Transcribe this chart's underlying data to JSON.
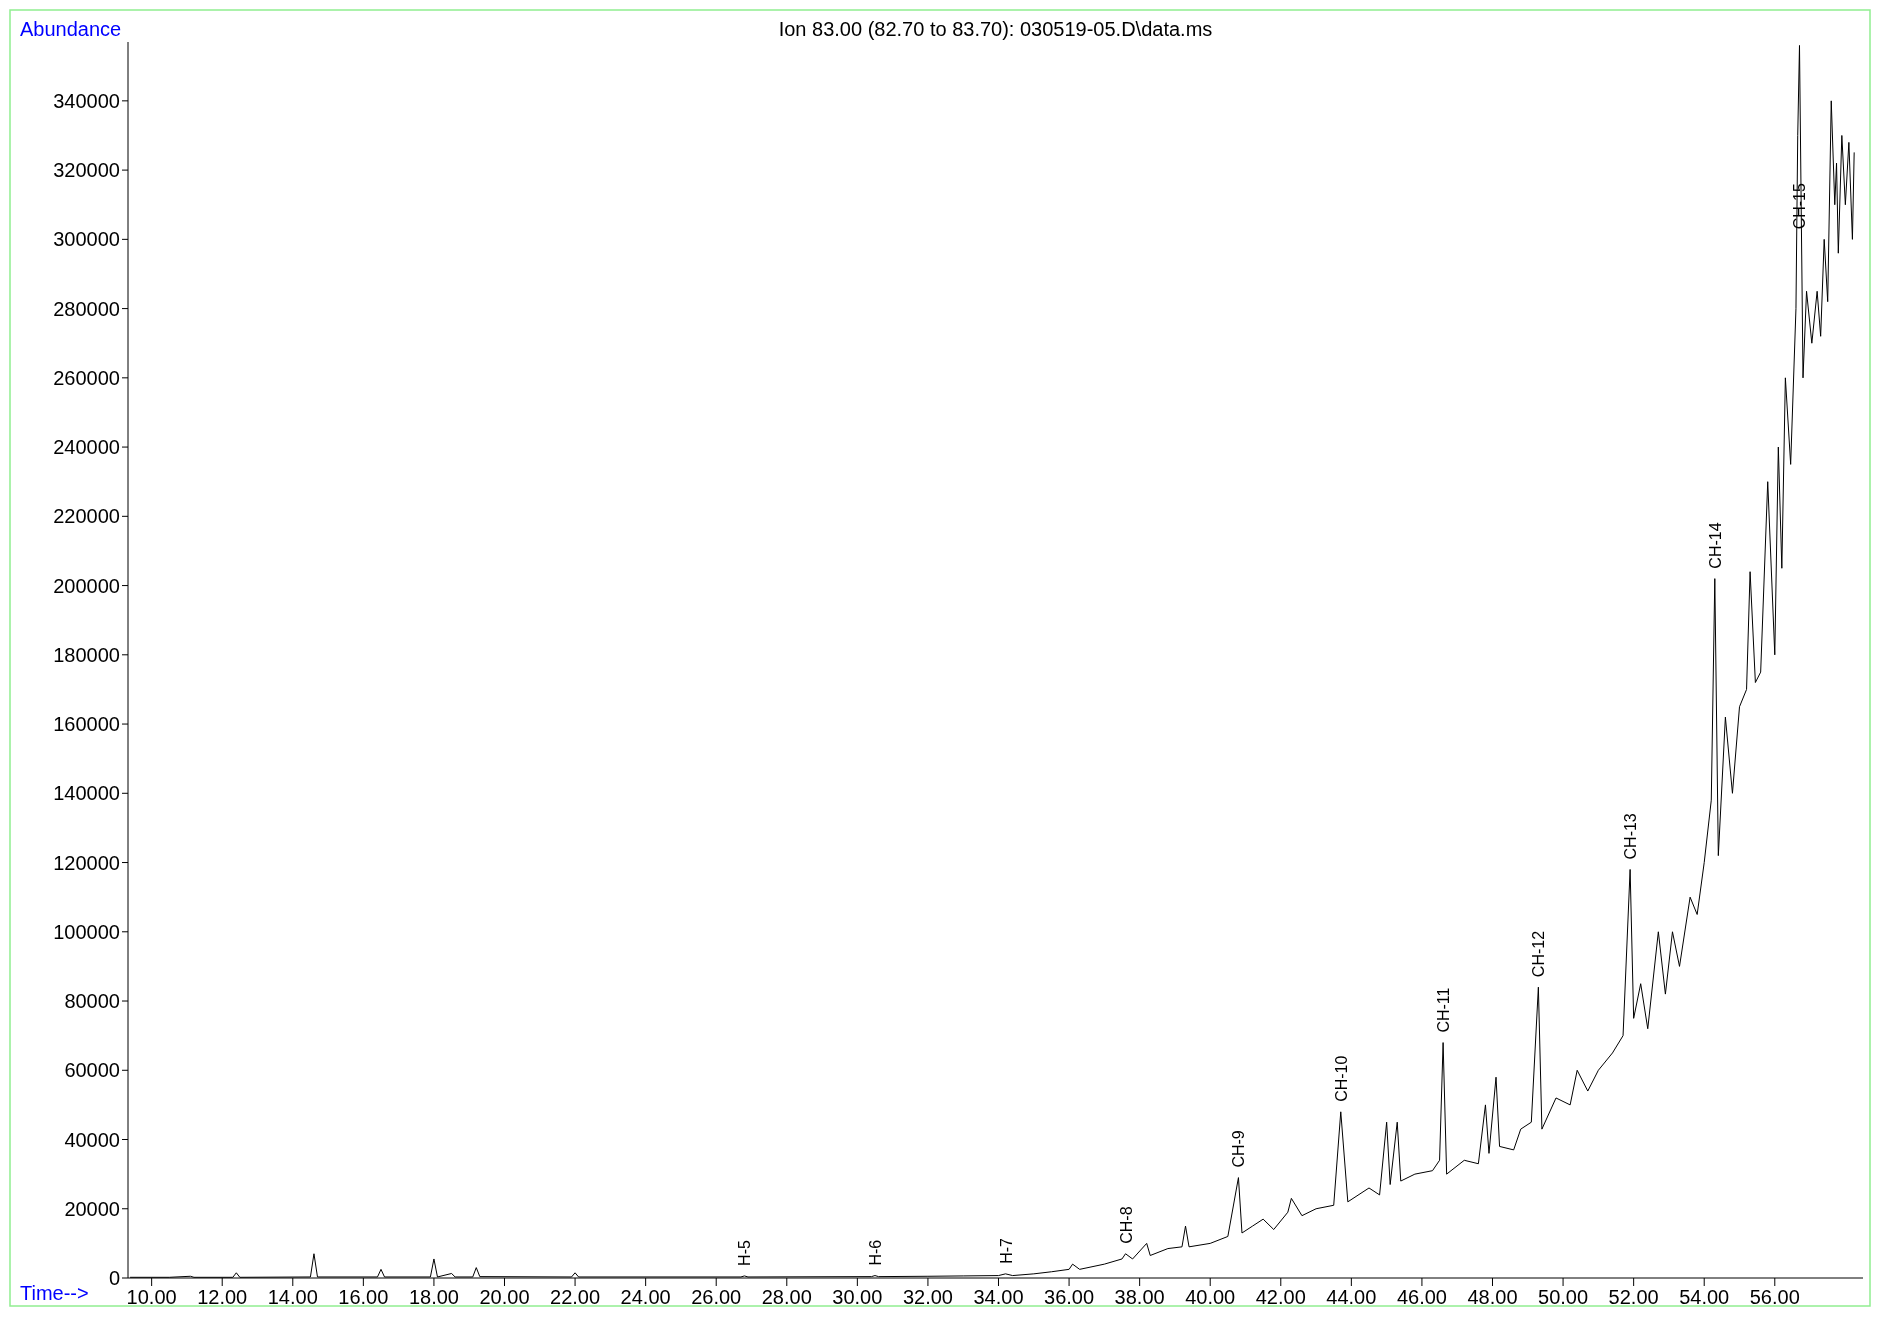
{
  "chart_data": {
    "type": "line",
    "title": "Ion  83.00 (82.70 to 83.70): 030519-05.D\\data.ms",
    "xlabel": "Time-->",
    "ylabel": "Abundance",
    "xlim": [
      9.33,
      58.5
    ],
    "ylim": [
      0,
      357000
    ],
    "xticks": [
      {
        "value": 10,
        "label": "10.00"
      },
      {
        "value": 12,
        "label": "12.00"
      },
      {
        "value": 14,
        "label": "14.00"
      },
      {
        "value": 16,
        "label": "16.00"
      },
      {
        "value": 18,
        "label": "18.00"
      },
      {
        "value": 20,
        "label": "20.00"
      },
      {
        "value": 22,
        "label": "22.00"
      },
      {
        "value": 24,
        "label": "24.00"
      },
      {
        "value": 26,
        "label": "26.00"
      },
      {
        "value": 28,
        "label": "28.00"
      },
      {
        "value": 30,
        "label": "30.00"
      },
      {
        "value": 32,
        "label": "32.00"
      },
      {
        "value": 34,
        "label": "34.00"
      },
      {
        "value": 36,
        "label": "36.00"
      },
      {
        "value": 38,
        "label": "38.00"
      },
      {
        "value": 40,
        "label": "40.00"
      },
      {
        "value": 42,
        "label": "42.00"
      },
      {
        "value": 44,
        "label": "44.00"
      },
      {
        "value": 46,
        "label": "46.00"
      },
      {
        "value": 48,
        "label": "48.00"
      },
      {
        "value": 50,
        "label": "50.00"
      },
      {
        "value": 52,
        "label": "52.00"
      },
      {
        "value": 54,
        "label": "54.00"
      },
      {
        "value": 56,
        "label": "56.00"
      }
    ],
    "yticks": [
      0,
      20000,
      40000,
      60000,
      80000,
      100000,
      120000,
      140000,
      160000,
      180000,
      200000,
      220000,
      240000,
      260000,
      280000,
      300000,
      320000,
      340000
    ],
    "grid": false,
    "marker": "none",
    "line_style": "solid",
    "annotations": [
      {
        "text": "H-5",
        "x": 26.8,
        "y": 600
      },
      {
        "text": "H-6",
        "x": 30.5,
        "y": 700
      },
      {
        "text": "H-7",
        "x": 34.2,
        "y": 1200
      },
      {
        "text": "CH-8",
        "x": 37.6,
        "y": 7000
      },
      {
        "text": "CH-9",
        "x": 40.8,
        "y": 29000
      },
      {
        "text": "CH-10",
        "x": 43.7,
        "y": 48000
      },
      {
        "text": "CH-11",
        "x": 46.6,
        "y": 68000
      },
      {
        "text": "CH-12",
        "x": 49.3,
        "y": 84000
      },
      {
        "text": "CH-13",
        "x": 51.9,
        "y": 118000
      },
      {
        "text": "CH-14",
        "x": 54.3,
        "y": 202000
      },
      {
        "text": "CH-15",
        "x": 56.7,
        "y": 300000
      }
    ],
    "series": [
      {
        "color": "#000000",
        "x": [
          9.4,
          10.5,
          11.1,
          11.2,
          12.3,
          12.4,
          12.5,
          14.5,
          14.6,
          14.7,
          16.4,
          16.5,
          16.6,
          17.9,
          18.0,
          18.1,
          18.5,
          18.6,
          19.1,
          19.2,
          19.3,
          21.9,
          22.0,
          22.1,
          26.7,
          26.8,
          26.9,
          30.4,
          30.5,
          30.6,
          32.0,
          33.0,
          34.0,
          34.2,
          34.4,
          35.0,
          35.5,
          36.0,
          36.1,
          36.3,
          37.0,
          37.5,
          37.6,
          37.8,
          38.2,
          38.3,
          38.8,
          39.2,
          39.3,
          39.4,
          40.0,
          40.5,
          40.8,
          40.9,
          41.2,
          41.5,
          41.8,
          42.2,
          42.3,
          42.6,
          43.0,
          43.5,
          43.7,
          43.9,
          44.5,
          44.8,
          45.0,
          45.1,
          45.3,
          45.4,
          45.8,
          46.3,
          46.5,
          46.6,
          46.7,
          47.2,
          47.6,
          47.8,
          47.9,
          48.1,
          48.2,
          48.6,
          48.8,
          49.1,
          49.3,
          49.4,
          49.8,
          50.2,
          50.4,
          50.7,
          51.0,
          51.4,
          51.7,
          51.9,
          52.0,
          52.2,
          52.4,
          52.7,
          52.9,
          53.1,
          53.3,
          53.6,
          53.8,
          54.0,
          54.2,
          54.3,
          54.4,
          54.6,
          54.8,
          55.0,
          55.2,
          55.3,
          55.45,
          55.6,
          55.8,
          56.0,
          56.1,
          56.2,
          56.3,
          56.45,
          56.6,
          56.65,
          56.7,
          56.8,
          56.9,
          57.05,
          57.2,
          57.3,
          57.4,
          57.5,
          57.6,
          57.7,
          57.75,
          57.8,
          57.9,
          58.0,
          58.1,
          58.2,
          58.25
        ],
        "values": [
          200,
          200,
          500,
          200,
          200,
          1500,
          200,
          300,
          7000,
          300,
          300,
          2500,
          300,
          300,
          5500,
          300,
          1300,
          300,
          300,
          3000,
          400,
          300,
          1500,
          300,
          300,
          600,
          300,
          400,
          700,
          400,
          500,
          600,
          700,
          1200,
          700,
          1200,
          1800,
          2500,
          4000,
          2500,
          4000,
          5500,
          7000,
          5500,
          10000,
          6500,
          8500,
          9000,
          15000,
          9000,
          10000,
          12000,
          29000,
          13000,
          15000,
          17000,
          14000,
          19000,
          23000,
          18000,
          20000,
          21000,
          48000,
          22000,
          26000,
          24000,
          45000,
          27000,
          45000,
          28000,
          30000,
          31000,
          34000,
          68000,
          30000,
          34000,
          33000,
          50000,
          36000,
          58000,
          38000,
          37000,
          43000,
          45000,
          84000,
          43000,
          52000,
          50000,
          60000,
          54000,
          60000,
          65000,
          70000,
          118000,
          75000,
          85000,
          72000,
          100000,
          82000,
          100000,
          90000,
          110000,
          105000,
          120000,
          138000,
          202000,
          122000,
          162000,
          140000,
          165000,
          170000,
          204000,
          172000,
          175000,
          230000,
          180000,
          240000,
          205000,
          260000,
          235000,
          280000,
          330000,
          356000,
          260000,
          285000,
          270000,
          285000,
          272000,
          300000,
          282000,
          340000,
          310000,
          322000,
          296000,
          330000,
          310000,
          328000,
          300000,
          325000
        ]
      }
    ]
  }
}
